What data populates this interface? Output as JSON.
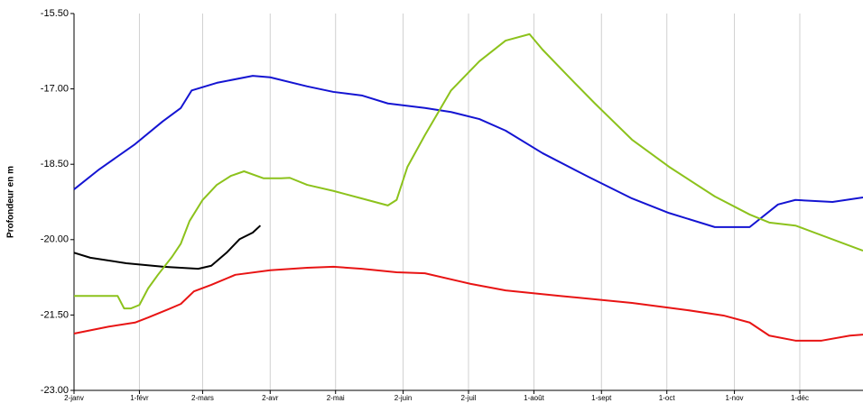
{
  "chart_data": {
    "type": "line",
    "y_label": "Profondeur en m",
    "xlim": [
      2,
      364
    ],
    "xticks": [
      {
        "value": 2,
        "label": "2-janv"
      },
      {
        "value": 32,
        "label": "1-févr"
      },
      {
        "value": 61,
        "label": "2-mars"
      },
      {
        "value": 92,
        "label": "2-avr"
      },
      {
        "value": 122,
        "label": "2-mai"
      },
      {
        "value": 153,
        "label": "2-juin"
      },
      {
        "value": 183,
        "label": "2-juil"
      },
      {
        "value": 213,
        "label": "1-août"
      },
      {
        "value": 244,
        "label": "1-sept"
      },
      {
        "value": 274,
        "label": "1-oct"
      },
      {
        "value": 305,
        "label": "1-nov"
      },
      {
        "value": 335,
        "label": "1-déc"
      }
    ],
    "ylim": [
      -23,
      -15.5
    ],
    "yticks": [
      {
        "value": -23,
        "label": "-23.00"
      },
      {
        "value": -21.5,
        "label": "-21.50"
      },
      {
        "value": -20,
        "label": "-20.00"
      },
      {
        "value": -18.5,
        "label": "-18.50"
      },
      {
        "value": -17,
        "label": "-17.00"
      },
      {
        "value": -15.5,
        "label": "-15.50"
      }
    ],
    "grid": "x",
    "series": [
      {
        "color": "#1414d2",
        "x": [
          2,
          13.6,
          30,
          42.6,
          51,
          56,
          67.5,
          84,
          92,
          109,
          121,
          134,
          146,
          163,
          175,
          188,
          200,
          217,
          238,
          258,
          275,
          296,
          312,
          325,
          333,
          350,
          364
        ],
        "values": [
          -19.0,
          -18.6,
          -18.1,
          -17.65,
          -17.38,
          -17.03,
          -16.88,
          -16.74,
          -16.77,
          -16.95,
          -17.06,
          -17.13,
          -17.29,
          -17.38,
          -17.46,
          -17.6,
          -17.83,
          -18.28,
          -18.75,
          -19.18,
          -19.47,
          -19.75,
          -19.75,
          -19.3,
          -19.21,
          -19.25,
          -19.16
        ]
      },
      {
        "color": "#e81414",
        "x": [
          2,
          18,
          30,
          36,
          45,
          51,
          57,
          65,
          76,
          92,
          109,
          121,
          134,
          150,
          163,
          184,
          200,
          225,
          258,
          283,
          300,
          312,
          321,
          333,
          345,
          358,
          364
        ],
        "values": [
          -21.87,
          -21.73,
          -21.65,
          -21.55,
          -21.39,
          -21.28,
          -21.03,
          -20.9,
          -20.7,
          -20.61,
          -20.56,
          -20.54,
          -20.58,
          -20.65,
          -20.67,
          -20.88,
          -21.01,
          -21.12,
          -21.26,
          -21.4,
          -21.51,
          -21.65,
          -21.91,
          -22.01,
          -22.01,
          -21.91,
          -21.89
        ]
      },
      {
        "color": "#000000",
        "x": [
          2,
          9.5,
          26,
          43,
          59,
          65,
          72,
          78,
          84,
          87.5
        ],
        "values": [
          -20.26,
          -20.36,
          -20.47,
          -20.54,
          -20.58,
          -20.52,
          -20.26,
          -19.99,
          -19.86,
          -19.72
        ]
      },
      {
        "color": "#8cc21c",
        "x": [
          2,
          22,
          25,
          28,
          32,
          36,
          40.5,
          47,
          51,
          55,
          61,
          67.5,
          74,
          80,
          89,
          97,
          101,
          109,
          121,
          134,
          146,
          150,
          155,
          163,
          175,
          188,
          200,
          211,
          217,
          229,
          241,
          258,
          275,
          296,
          312,
          321,
          333,
          364
        ],
        "values": [
          -21.12,
          -21.12,
          -21.37,
          -21.37,
          -21.3,
          -20.97,
          -20.7,
          -20.34,
          -20.08,
          -19.63,
          -19.21,
          -18.91,
          -18.73,
          -18.64,
          -18.78,
          -18.78,
          -18.77,
          -18.91,
          -19.03,
          -19.18,
          -19.32,
          -19.21,
          -18.55,
          -17.92,
          -17.03,
          -16.45,
          -16.04,
          -15.91,
          -16.22,
          -16.76,
          -17.29,
          -18.01,
          -18.55,
          -19.14,
          -19.5,
          -19.66,
          -19.72,
          -20.22
        ]
      }
    ]
  }
}
